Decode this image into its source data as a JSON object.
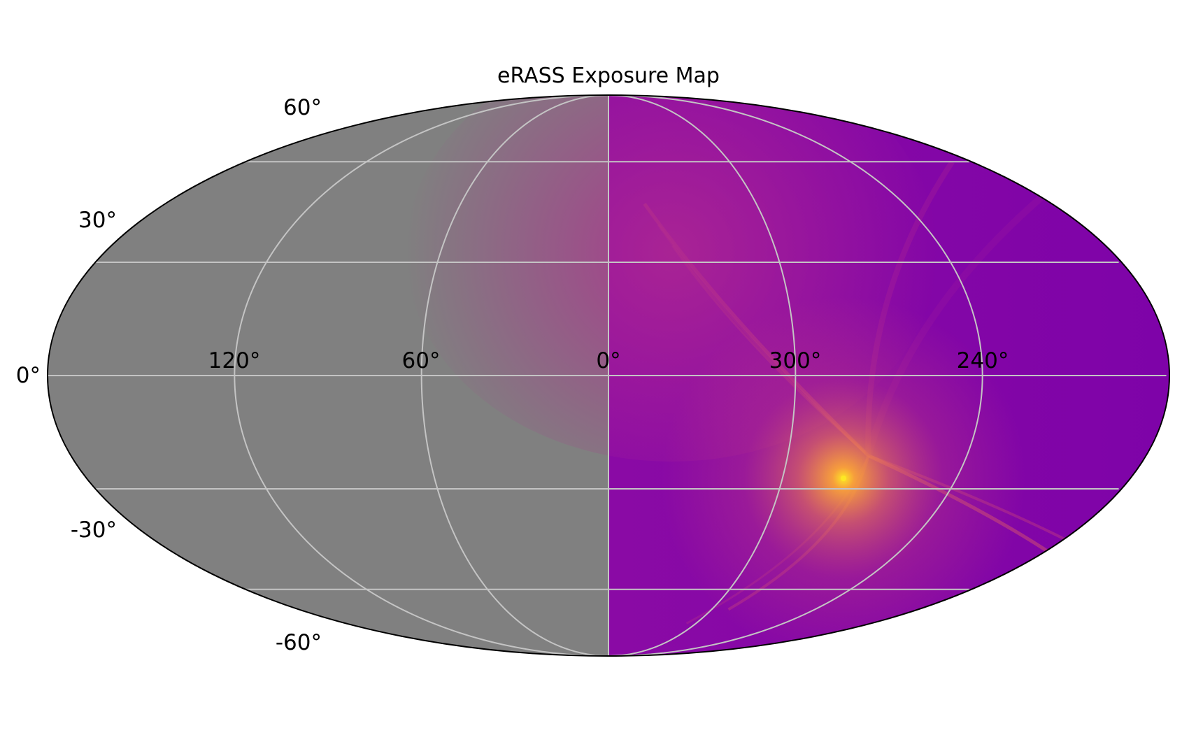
{
  "chart_data": {
    "type": "heatmap",
    "title": "eRASS Exposure Map",
    "projection": "mollweide",
    "longitude_ticks": [
      "120°",
      "60°",
      "0°",
      "300°",
      "240°"
    ],
    "latitude_ticks": [
      "60°",
      "30°",
      "0°",
      "-30°",
      "-60°"
    ],
    "grid": true,
    "masked_region": {
      "longitude_range": [
        0,
        180
      ],
      "color": "#808080"
    },
    "colormap": "plasma",
    "hotspot": {
      "longitude": 273,
      "latitude": -21
    },
    "colors": {
      "masked": "#808080",
      "low": "#7a03a8",
      "mid": "#a8299a",
      "high": "#f9a443",
      "peak": "#fde724",
      "grid": "#c4c4c4",
      "outline": "#000000"
    }
  }
}
